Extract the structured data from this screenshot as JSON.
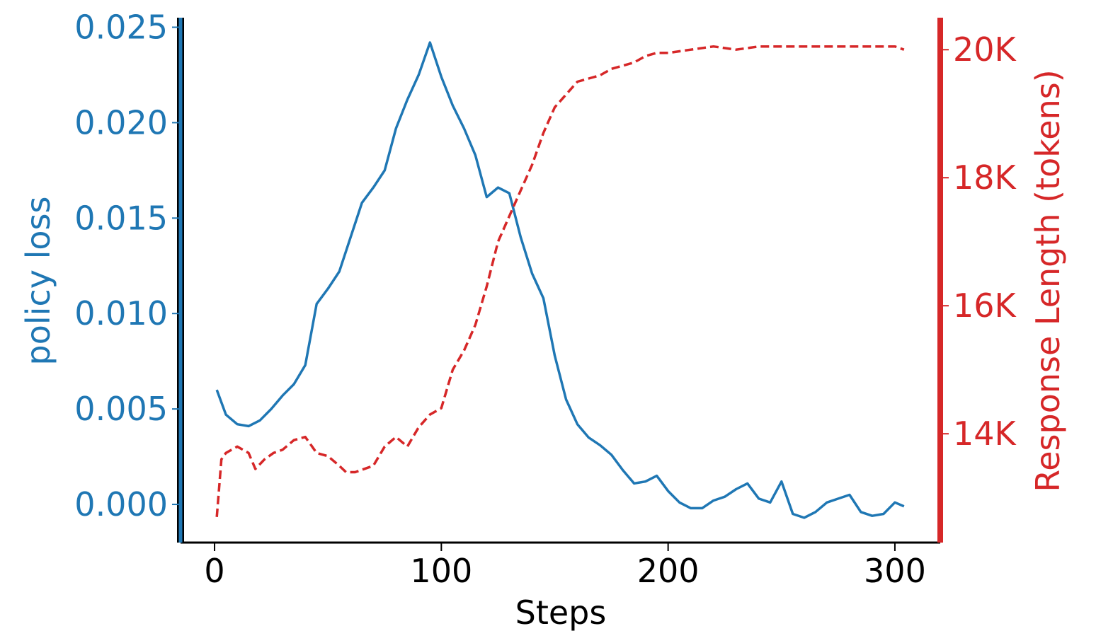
{
  "chart_data": {
    "type": "line",
    "xlabel": "Steps",
    "ylabel_left": "policy loss",
    "ylabel_right": "Response Length (tokens)",
    "xlim": [
      -15,
      320
    ],
    "ylim_left": [
      -0.002,
      0.0255
    ],
    "ylim_right": [
      12300,
      20500
    ],
    "x_ticks": [
      0,
      100,
      200,
      300
    ],
    "y_left_ticks": [
      0.0,
      0.005,
      0.01,
      0.015,
      0.02,
      0.025
    ],
    "y_left_tick_labels": [
      "0.000",
      "0.005",
      "0.010",
      "0.015",
      "0.020",
      "0.025"
    ],
    "y_right_ticks": [
      14000,
      16000,
      18000,
      20000
    ],
    "y_right_tick_labels": [
      "14K",
      "16K",
      "18K",
      "20K"
    ],
    "grid": false,
    "colors": {
      "left": "#1f77b4",
      "right": "#d62728",
      "axis": "#000000"
    },
    "series": [
      {
        "axis": "left",
        "style": "solid",
        "x": [
          1,
          5,
          10,
          15,
          20,
          25,
          30,
          35,
          40,
          45,
          50,
          55,
          60,
          65,
          70,
          75,
          80,
          85,
          90,
          95,
          100,
          105,
          110,
          115,
          120,
          125,
          130,
          135,
          140,
          145,
          150,
          155,
          160,
          165,
          170,
          175,
          180,
          185,
          190,
          195,
          200,
          205,
          210,
          215,
          220,
          225,
          230,
          235,
          240,
          245,
          250,
          255,
          260,
          265,
          270,
          275,
          280,
          285,
          290,
          295,
          300,
          304
        ],
        "y": [
          0.006,
          0.0047,
          0.0042,
          0.0041,
          0.0044,
          0.005,
          0.0057,
          0.0063,
          0.0073,
          0.0105,
          0.0113,
          0.0122,
          0.014,
          0.0158,
          0.0166,
          0.0175,
          0.0197,
          0.0212,
          0.0225,
          0.0242,
          0.0224,
          0.0209,
          0.0197,
          0.0183,
          0.0161,
          0.0166,
          0.0163,
          0.014,
          0.0121,
          0.0108,
          0.0078,
          0.0055,
          0.0042,
          0.0035,
          0.0031,
          0.0026,
          0.0018,
          0.0011,
          0.0012,
          0.0015,
          0.0007,
          0.0001,
          -0.0002,
          -0.0002,
          0.0002,
          0.0004,
          0.0008,
          0.0011,
          0.0003,
          0.0001,
          0.0012,
          -0.0005,
          -0.0007,
          -0.0004,
          0.0001,
          0.0003,
          0.0005,
          -0.0004,
          -0.0006,
          -0.0005,
          0.0001,
          -0.0001
        ]
      },
      {
        "axis": "right",
        "style": "dashed",
        "x": [
          1,
          3,
          5,
          10,
          15,
          18,
          22,
          26,
          30,
          35,
          40,
          45,
          50,
          55,
          58,
          62,
          70,
          75,
          80,
          85,
          90,
          95,
          100,
          105,
          110,
          115,
          120,
          125,
          130,
          135,
          140,
          145,
          150,
          155,
          160,
          165,
          170,
          175,
          180,
          185,
          190,
          195,
          200,
          210,
          220,
          230,
          240,
          250,
          260,
          270,
          280,
          290,
          295,
          300,
          304
        ],
        "y": [
          12700,
          13600,
          13700,
          13800,
          13700,
          13450,
          13600,
          13700,
          13750,
          13900,
          13950,
          13700,
          13650,
          13500,
          13400,
          13400,
          13500,
          13800,
          13950,
          13800,
          14100,
          14300,
          14400,
          15000,
          15300,
          15700,
          16300,
          17000,
          17400,
          17800,
          18200,
          18700,
          19100,
          19300,
          19500,
          19550,
          19600,
          19700,
          19750,
          19800,
          19900,
          19950,
          19950,
          20000,
          20050,
          20000,
          20050,
          20050,
          20050,
          20050,
          20050,
          20050,
          20050,
          20050,
          20000
        ]
      }
    ]
  }
}
